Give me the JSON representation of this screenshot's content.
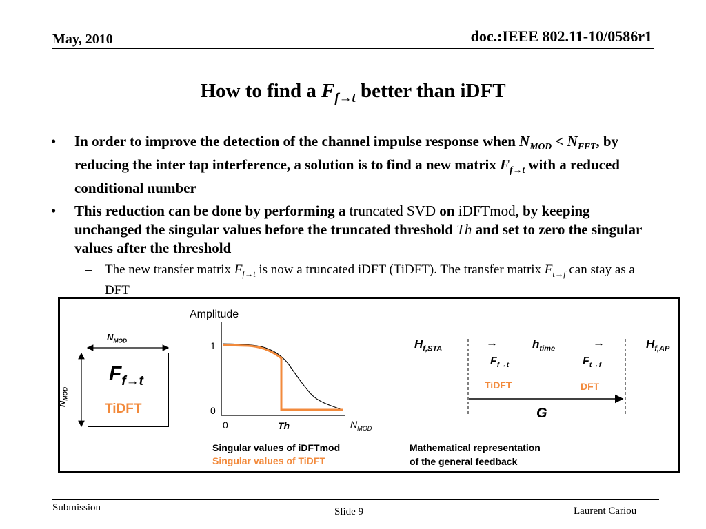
{
  "header": {
    "date": "May, 2010",
    "doc_id": "doc.:IEEE 802.11-10/0586r1"
  },
  "title": {
    "pre": "How to find a ",
    "F": "F",
    "sub": "f→t",
    "post": " better than iDFT"
  },
  "bullets": [
    {
      "text_1": "In order to improve the detection of the channel impulse response when ",
      "n_mod_N": "N",
      "n_mod_sub": "MOD",
      "lt": " < ",
      "n_fft_N": "N",
      "n_fft_sub": "FFT",
      "text_2": ", by reducing the inter tap interference, a solution is to find a new matrix ",
      "f_F": "F",
      "f_sub": "f→t",
      "text_3": " with a reduced conditional number"
    },
    {
      "text_1": "This reduction can be done by performing a ",
      "svd": "truncated SVD",
      "on": " on ",
      "idftmod": "iDFTmod",
      "text_2": ", by keeping unchanged the singular values before the truncated threshold ",
      "th": "Th",
      "text_3": " and set to zero the singular values after the threshold"
    }
  ],
  "subbullet": {
    "text_1": "The new transfer matrix ",
    "f1_F": "F",
    "f1_sub": "f→t",
    "text_2": " is now a truncated iDFT (TiDFT). The transfer matrix ",
    "f2_F": "F",
    "f2_sub": "t→f",
    "text_3": " can stay as a DFT"
  },
  "figure": {
    "matrix": {
      "n_top": "N",
      "n_top_sub": "MOD",
      "n_left": "N",
      "n_left_sub": "MOD",
      "F": "F",
      "F_sub": "f→t",
      "label": "TiDFT"
    },
    "chart": {
      "amplitude": "Amplitude",
      "y1": "1",
      "y0": "0",
      "x0": "0",
      "th": "Th",
      "n_mod": "N",
      "n_mod_sub": "MOD",
      "caption_1": "Singular values of iDFTmod",
      "caption_2": "Singular values of TiDFT",
      "colors": {
        "idftmod": "#000000",
        "tidft": "#f28a3c"
      }
    },
    "feedback": {
      "h_sta": "H",
      "h_sta_sub": "f,STA",
      "arrow": "→",
      "h_time": "h",
      "h_time_sub": "time",
      "h_ap": "H",
      "h_ap_sub": "f,AP",
      "f1": "F",
      "f1_sub": "f→t",
      "f2": "F",
      "f2_sub": "t→f",
      "tidft": "TiDFT",
      "dft": "DFT",
      "g": "G",
      "caption_1": "Mathematical representation",
      "caption_2": "of the general feedback"
    }
  },
  "footer": {
    "left": "Submission",
    "center": "Slide 9",
    "right": "Laurent Cariou"
  }
}
